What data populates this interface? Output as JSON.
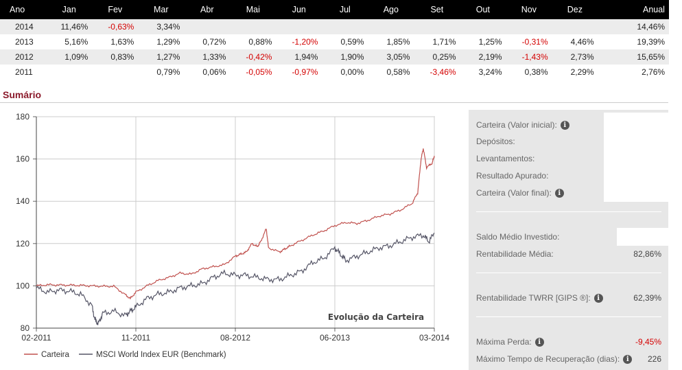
{
  "table": {
    "headers": [
      "Ano",
      "Jan",
      "Fev",
      "Mar",
      "Abr",
      "Mai",
      "Jun",
      "Jul",
      "Ago",
      "Set",
      "Out",
      "Nov",
      "Dez",
      "Anual"
    ],
    "rows": [
      {
        "year": "2014",
        "cells": [
          "11,46%",
          "-0,63%",
          "3,34%",
          "",
          "",
          "",
          "",
          "",
          "",
          "",
          "",
          ""
        ],
        "annual": "14,46%"
      },
      {
        "year": "2013",
        "cells": [
          "5,16%",
          "1,63%",
          "1,29%",
          "0,72%",
          "0,88%",
          "-1,20%",
          "0,59%",
          "1,85%",
          "1,71%",
          "1,25%",
          "-0,31%",
          "4,46%"
        ],
        "annual": "19,39%"
      },
      {
        "year": "2012",
        "cells": [
          "1,09%",
          "0,83%",
          "1,27%",
          "1,33%",
          "-0,42%",
          "1,94%",
          "1,90%",
          "3,05%",
          "0,25%",
          "2,19%",
          "-1,43%",
          "2,73%"
        ],
        "annual": "15,65%"
      },
      {
        "year": "2011",
        "cells": [
          "",
          "",
          "0,79%",
          "0,06%",
          "-0,05%",
          "-0,97%",
          "0,00%",
          "0,58%",
          "-3,46%",
          "3,24%",
          "0,38%",
          "2,29%"
        ],
        "annual": "2,76%"
      }
    ]
  },
  "summary_title": "Sumário",
  "stats": {
    "carteira_inicial": "Carteira (Valor inicial):",
    "depositos": "Depósitos:",
    "levantamentos": "Levantamentos:",
    "resultado": "Resultado Apurado:",
    "carteira_final": "Carteira (Valor final):",
    "saldo_medio": "Saldo Médio Investido:",
    "rent_media_label": "Rentabilidade Média:",
    "rent_media_value": "82,86%",
    "twrr_label": "Rentabilidade TWRR [GIPS ®]:",
    "twrr_value": "62,39%",
    "max_perda_label": "Máxima Perda:",
    "max_perda_value": "-9,45%",
    "max_tempo_label": "Máximo Tempo de Recuperação (dias):",
    "max_tempo_value": "226",
    "info_glyph": "i"
  },
  "chart_data": {
    "type": "line",
    "title": "Evolução da Carteira",
    "xlabel": "",
    "ylabel": "",
    "ylim": [
      80,
      180
    ],
    "yticks": [
      80,
      100,
      120,
      140,
      160,
      180
    ],
    "xtick_labels": [
      "02-2011",
      "11-2011",
      "08-2012",
      "06-2013",
      "03-2014"
    ],
    "xlim": [
      0,
      36
    ],
    "xticks": [
      0,
      9,
      18,
      27,
      36
    ],
    "series": [
      {
        "name": "Carteira",
        "color": "#c0504d",
        "points": [
          [
            0,
            100
          ],
          [
            1,
            100.5
          ],
          [
            2,
            100.4
          ],
          [
            3,
            100.3
          ],
          [
            4,
            100.2
          ],
          [
            5,
            100
          ],
          [
            6,
            99.8
          ],
          [
            7,
            99.8
          ],
          [
            8,
            96
          ],
          [
            8.5,
            94
          ],
          [
            9,
            97
          ],
          [
            10,
            100
          ],
          [
            11,
            102.5
          ],
          [
            12,
            104
          ],
          [
            13,
            106
          ],
          [
            14,
            105.5
          ],
          [
            15,
            108
          ],
          [
            16,
            109
          ],
          [
            17,
            110
          ],
          [
            18,
            114
          ],
          [
            18.5,
            115
          ],
          [
            19,
            116
          ],
          [
            19.5,
            120
          ],
          [
            20,
            118.5
          ],
          [
            20.3,
            121
          ],
          [
            20.8,
            127
          ],
          [
            21,
            118
          ],
          [
            22,
            116
          ],
          [
            22.5,
            117.5
          ],
          [
            23,
            119
          ],
          [
            24,
            121.5
          ],
          [
            25,
            124
          ],
          [
            26,
            126
          ],
          [
            27,
            128.5
          ],
          [
            28,
            130
          ],
          [
            29,
            129.5
          ],
          [
            30,
            131
          ],
          [
            31,
            133
          ],
          [
            32,
            134
          ],
          [
            33,
            136
          ],
          [
            34,
            139
          ],
          [
            34.5,
            144
          ],
          [
            34.8,
            160
          ],
          [
            35,
            165
          ],
          [
            35.3,
            156
          ],
          [
            35.8,
            158
          ],
          [
            36,
            161.5
          ]
        ]
      },
      {
        "name": "MSCI World Index EUR (Benchmark)",
        "color": "#555566",
        "points": [
          [
            0,
            99
          ],
          [
            1,
            97
          ],
          [
            2,
            98
          ],
          [
            3,
            97.5
          ],
          [
            4,
            96
          ],
          [
            5,
            91
          ],
          [
            5.3,
            84
          ],
          [
            5.6,
            82
          ],
          [
            6,
            87
          ],
          [
            7,
            88
          ],
          [
            8,
            86
          ],
          [
            8.5,
            88
          ],
          [
            9,
            90
          ],
          [
            10,
            94
          ],
          [
            11,
            96
          ],
          [
            12,
            97
          ],
          [
            13,
            99
          ],
          [
            14,
            100
          ],
          [
            15,
            101
          ],
          [
            16,
            104
          ],
          [
            17,
            106
          ],
          [
            18,
            105
          ],
          [
            19,
            105
          ],
          [
            20,
            104
          ],
          [
            21,
            103
          ],
          [
            22,
            103
          ],
          [
            23,
            105
          ],
          [
            24,
            107
          ],
          [
            25,
            111
          ],
          [
            26,
            113
          ],
          [
            27,
            118
          ],
          [
            27.5,
            115
          ],
          [
            28,
            112
          ],
          [
            29,
            114
          ],
          [
            30,
            116
          ],
          [
            31,
            118
          ],
          [
            32,
            119
          ],
          [
            33,
            121
          ],
          [
            34,
            123
          ],
          [
            35,
            124
          ],
          [
            35.5,
            121
          ],
          [
            36,
            125
          ]
        ]
      }
    ],
    "legend": [
      {
        "name": "Carteira",
        "color": "#c0504d"
      },
      {
        "name": "MSCI World Index EUR (Benchmark)",
        "color": "#555566"
      }
    ]
  }
}
